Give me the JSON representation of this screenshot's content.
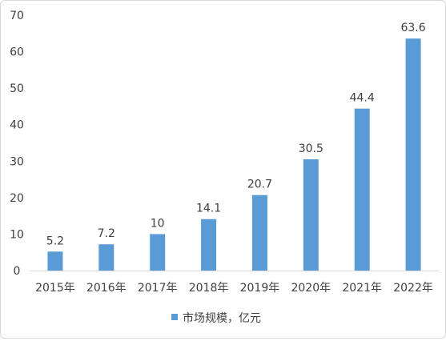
{
  "chart_data": {
    "type": "bar",
    "categories": [
      "2015年",
      "2016年",
      "2017年",
      "2018年",
      "2019年",
      "2020年",
      "2021年",
      "2022年"
    ],
    "series": [
      {
        "name": "市场规模，亿元",
        "values": [
          5.2,
          7.2,
          10,
          14.1,
          20.7,
          30.5,
          44.4,
          63.6
        ],
        "color": "#5b9bd5"
      }
    ],
    "data_labels": [
      "5.2",
      "7.2",
      "10",
      "14.1",
      "20.7",
      "30.5",
      "44.4",
      "63.6"
    ],
    "y_ticks": [
      0,
      10,
      20,
      30,
      40,
      50,
      60,
      70
    ],
    "ylim": [
      0,
      70
    ],
    "grid": false,
    "legend_position": "bottom",
    "title": "",
    "xlabel": "",
    "ylabel": ""
  }
}
